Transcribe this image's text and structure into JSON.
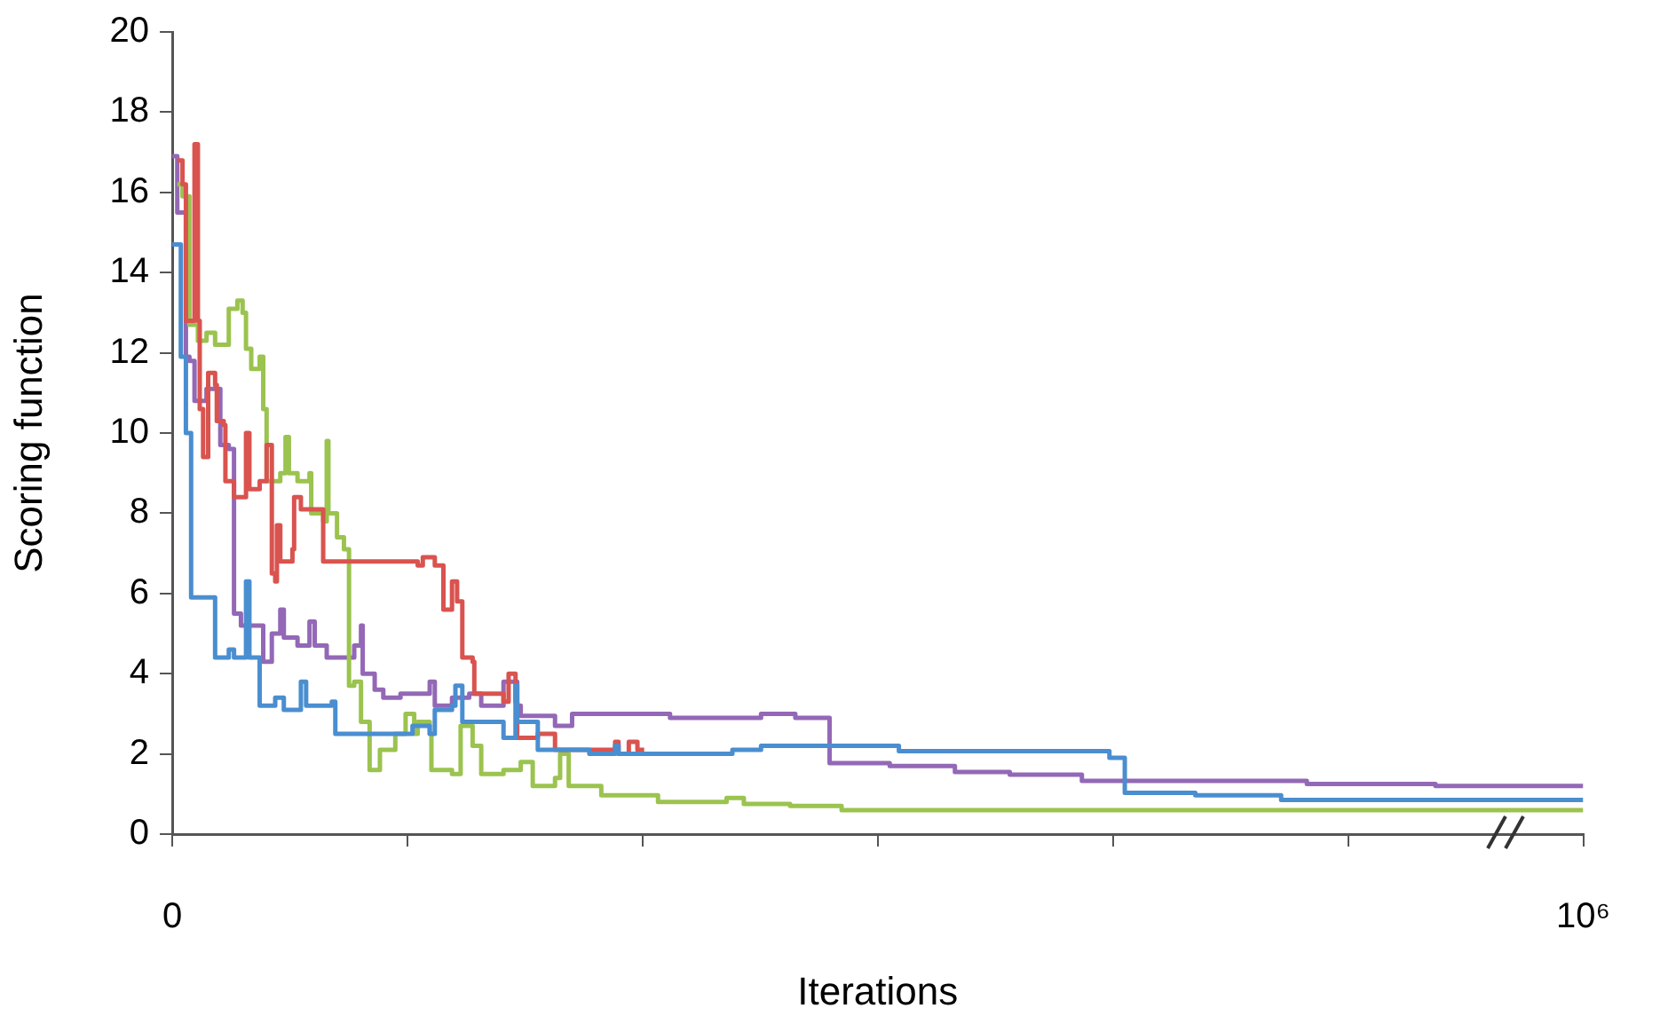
{
  "chart_data": {
    "type": "step",
    "xlabel": "Iterations",
    "ylabel": "Scoring function",
    "xlim": [
      0,
      1000000
    ],
    "ylim": [
      0,
      20
    ],
    "xticks": [
      0,
      {
        "value": 166667,
        "label": null
      },
      {
        "value": 333333,
        "label": null
      },
      {
        "value": 500000,
        "label": null
      },
      {
        "value": 666667,
        "label": null
      },
      {
        "value": 833333,
        "label": null
      },
      {
        "value": 1000000,
        "label": "10⁶"
      }
    ],
    "yticks": [
      0,
      2,
      4,
      6,
      8,
      10,
      12,
      14,
      16,
      18,
      20
    ],
    "grid": false,
    "marker": "none",
    "series": [
      {
        "color": "#4a8ed0",
        "x": [
          0,
          6100,
          9700,
          13400,
          30400,
          40100,
          43800,
          52300,
          54700,
          62000,
          73000,
          79100,
          91200,
          94900,
          113100,
          115600,
          141100,
          170300,
          182500,
          186100,
          198300,
          200700,
          205600,
          234800,
          243300,
          244500,
          255500,
          259100,
          271300,
          295600,
          304100,
          313900,
          316300,
          397000,
          417300,
          508500,
          515000,
          664200,
          675100,
          725100,
          785900,
          1000000
        ],
        "values": [
          14.7,
          11.9,
          10.0,
          5.9,
          4.4,
          4.6,
          4.4,
          6.3,
          4.4,
          3.2,
          3.4,
          3.1,
          3.8,
          3.2,
          3.3,
          2.5,
          2.5,
          2.7,
          2.5,
          3.1,
          3.2,
          3.7,
          2.8,
          2.4,
          3.7,
          2.8,
          2.8,
          2.1,
          2.1,
          2.0,
          2.0,
          2.2,
          2.0,
          2.1,
          2.2,
          2.2,
          2.07,
          1.9,
          1.03,
          0.97,
          0.85,
          0.85
        ]
      },
      {
        "color": "#d9534f",
        "x": [
          3600,
          7300,
          9700,
          15800,
          18200,
          19500,
          21900,
          25500,
          30400,
          31600,
          36500,
          37700,
          43800,
          52300,
          54700,
          62000,
          66900,
          70600,
          73000,
          74200,
          76600,
          85200,
          86400,
          91200,
          107000,
          174000,
          177600,
          186100,
          192200,
          198300,
          201900,
          205600,
          212900,
          214100,
          234800,
          238400,
          243300,
          244500,
          259100,
          271300,
          313900,
          316300,
          323600,
          329700,
          334500
        ],
        "values": [
          16.8,
          16.2,
          12.8,
          17.2,
          12.8,
          10.6,
          9.4,
          11.5,
          11.2,
          10.3,
          10.2,
          8.8,
          8.4,
          10.0,
          8.6,
          8.8,
          9.7,
          6.5,
          6.3,
          7.7,
          6.8,
          7.1,
          8.4,
          8.1,
          6.8,
          6.7,
          6.9,
          6.7,
          5.6,
          6.3,
          5.8,
          4.4,
          4.3,
          3.5,
          3.3,
          4.0,
          3.3,
          2.4,
          2.5,
          2.1,
          2.3,
          2.0,
          2.3,
          2.1,
          2.1
        ]
      },
      {
        "color": "#9bc34f",
        "x": [
          3600,
          7300,
          12200,
          18200,
          24300,
          30400,
          40100,
          46200,
          49900,
          52300,
          56000,
          62000,
          64500,
          66900,
          76600,
          80300,
          82700,
          88800,
          97300,
          98500,
          107000,
          109500,
          110700,
          116800,
          121700,
          125300,
          129000,
          133800,
          139900,
          147200,
          158100,
          165400,
          171500,
          174000,
          182500,
          183700,
          198300,
          204400,
          212900,
          219000,
          234800,
          247000,
          255500,
          271300,
          274900,
          281000,
          304100,
          344300,
          392900,
          405100,
          437900,
          474400,
          1000000
        ],
        "values": [
          16.2,
          15.9,
          12.7,
          12.3,
          12.5,
          12.2,
          13.1,
          13.3,
          13.0,
          12.1,
          11.6,
          11.9,
          10.6,
          8.8,
          9.0,
          9.9,
          9.0,
          8.8,
          9.0,
          8.0,
          7.8,
          9.8,
          8.0,
          7.4,
          7.1,
          3.7,
          3.8,
          2.8,
          1.6,
          2.1,
          2.5,
          3.0,
          2.5,
          2.8,
          2.5,
          1.6,
          1.5,
          2.7,
          2.2,
          1.5,
          1.6,
          1.8,
          1.2,
          1.4,
          2.0,
          1.2,
          0.97,
          0.8,
          0.9,
          0.75,
          0.7,
          0.6,
          0.6
        ]
      },
      {
        "color": "#9368b6",
        "x": [
          0,
          3600,
          9700,
          12200,
          15800,
          24300,
          34100,
          40100,
          43800,
          48700,
          64500,
          70600,
          76600,
          79100,
          88800,
          97300,
          101000,
          109500,
          121700,
          129000,
          133800,
          135000,
          143500,
          149600,
          161800,
          174000,
          182500,
          186100,
          198300,
          210500,
          219000,
          234800,
          244500,
          247000,
          271300,
          283400,
          352800,
          417300,
          441600,
          465900,
          508500,
          554700,
          593600,
          644700,
          804100,
          895300,
          1000000
        ],
        "values": [
          16.9,
          15.5,
          11.9,
          11.8,
          10.8,
          11.1,
          9.7,
          9.6,
          5.5,
          5.2,
          4.3,
          5.0,
          5.6,
          4.9,
          4.7,
          5.3,
          4.7,
          4.4,
          4.4,
          4.7,
          5.2,
          4.0,
          3.6,
          3.4,
          3.5,
          3.5,
          3.8,
          3.2,
          3.4,
          3.5,
          3.2,
          3.8,
          3.2,
          2.95,
          2.7,
          3.0,
          2.9,
          3.0,
          2.9,
          1.77,
          1.7,
          1.55,
          1.48,
          1.33,
          1.25,
          1.2,
          1.2
        ]
      }
    ]
  }
}
